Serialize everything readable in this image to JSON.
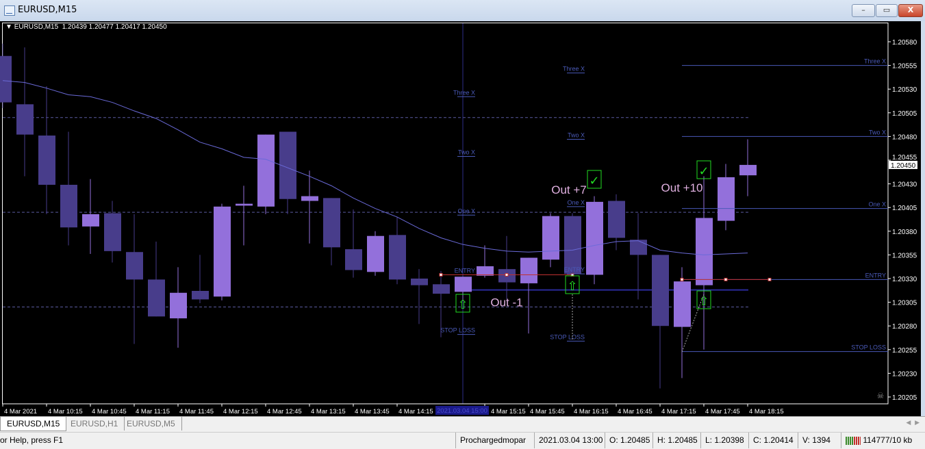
{
  "window": {
    "title": "EURUSD,M15",
    "buttons": {
      "minimize": "–",
      "maximize": "▭",
      "close": "X"
    }
  },
  "chart_header": {
    "symbol": "EURUSD,M15",
    "ohlc": "1.20439 1.20477 1.20417 1.20450"
  },
  "colors": {
    "background": "#000000",
    "bull": "#9370db",
    "bear": "#483d8b",
    "ma": "#6a6ad8",
    "levels": "#4a5ab8",
    "entry_line": "#c03030",
    "signal_box": "#22dd22",
    "out_text": "#e0b0e0"
  },
  "chart_data": {
    "type": "candlestick",
    "symbol": "EURUSD",
    "timeframe": "M15",
    "ylim": [
      1.20195,
      1.20598
    ],
    "current_price": "1.20450",
    "price_ticks": [
      "1.20580",
      "1.20555",
      "1.20530",
      "1.20505",
      "1.20480",
      "1.20455",
      "1.20430",
      "1.20405",
      "1.20380",
      "1.20355",
      "1.20330",
      "1.20305",
      "1.20280",
      "1.20255",
      "1.20230",
      "1.20205"
    ],
    "time_labels": [
      {
        "bar": 0,
        "text": "4 Mar 2021"
      },
      {
        "bar": 2,
        "text": "4 Mar 10:15"
      },
      {
        "bar": 4,
        "text": "4 Mar 10:45"
      },
      {
        "bar": 6,
        "text": "4 Mar 11:15"
      },
      {
        "bar": 8,
        "text": "4 Mar 11:45"
      },
      {
        "bar": 10,
        "text": "4 Mar 12:15"
      },
      {
        "bar": 12,
        "text": "4 Mar 12:45"
      },
      {
        "bar": 14,
        "text": "4 Mar 13:15"
      },
      {
        "bar": 16,
        "text": "4 Mar 13:45"
      },
      {
        "bar": 18,
        "text": "4 Mar 14:15"
      },
      {
        "bar": 22,
        "text": "4 Mar 15:15"
      },
      {
        "bar": 24,
        "text": "4 Mar 15:45"
      },
      {
        "bar": 26,
        "text": "4 Mar 16:15"
      },
      {
        "bar": 28,
        "text": "4 Mar 16:45"
      },
      {
        "bar": 30,
        "text": "4 Mar 17:15"
      },
      {
        "bar": 32,
        "text": "4 Mar 17:45"
      },
      {
        "bar": 34,
        "text": "4 Mar 18:15"
      }
    ],
    "crosshair": {
      "bar": 21,
      "text": "2021.03.04 15:00"
    },
    "candles": [
      {
        "t": "09:45",
        "o": 1.20565,
        "h": 1.20578,
        "l": 1.2051,
        "c": 1.20516
      },
      {
        "t": "10:00",
        "o": 1.20514,
        "h": 1.20574,
        "l": 1.20438,
        "c": 1.20482
      },
      {
        "t": "10:15",
        "o": 1.20481,
        "h": 1.20533,
        "l": 1.20398,
        "c": 1.20429
      },
      {
        "t": "10:30",
        "o": 1.20429,
        "h": 1.20485,
        "l": 1.20365,
        "c": 1.20384
      },
      {
        "t": "10:45",
        "o": 1.20385,
        "h": 1.20435,
        "l": 1.20356,
        "c": 1.20398
      },
      {
        "t": "11:00",
        "o": 1.20399,
        "h": 1.20412,
        "l": 1.20347,
        "c": 1.20359
      },
      {
        "t": "11:15",
        "o": 1.20358,
        "h": 1.20398,
        "l": 1.20261,
        "c": 1.20329
      },
      {
        "t": "11:30",
        "o": 1.20329,
        "h": 1.20369,
        "l": 1.2029,
        "c": 1.2029
      },
      {
        "t": "11:45",
        "o": 1.20288,
        "h": 1.20342,
        "l": 1.20257,
        "c": 1.20315
      },
      {
        "t": "12:00",
        "o": 1.20317,
        "h": 1.20355,
        "l": 1.20304,
        "c": 1.20308
      },
      {
        "t": "12:15",
        "o": 1.20311,
        "h": 1.20409,
        "l": 1.20307,
        "c": 1.20406
      },
      {
        "t": "12:30",
        "o": 1.20407,
        "h": 1.20428,
        "l": 1.20365,
        "c": 1.20409
      },
      {
        "t": "12:45",
        "o": 1.20406,
        "h": 1.20482,
        "l": 1.20398,
        "c": 1.20482
      },
      {
        "t": "13:00",
        "o": 1.20485,
        "h": 1.20485,
        "l": 1.20398,
        "c": 1.20414
      },
      {
        "t": "13:15",
        "o": 1.20412,
        "h": 1.20444,
        "l": 1.20367,
        "c": 1.20417
      },
      {
        "t": "13:30",
        "o": 1.20415,
        "h": 1.20415,
        "l": 1.20344,
        "c": 1.20363
      },
      {
        "t": "13:45",
        "o": 1.20361,
        "h": 1.20403,
        "l": 1.20331,
        "c": 1.20339
      },
      {
        "t": "14:00",
        "o": 1.20337,
        "h": 1.2038,
        "l": 1.20333,
        "c": 1.20375
      },
      {
        "t": "14:15",
        "o": 1.20376,
        "h": 1.20395,
        "l": 1.20324,
        "c": 1.20329
      },
      {
        "t": "14:30",
        "o": 1.2033,
        "h": 1.2034,
        "l": 1.20282,
        "c": 1.20323
      },
      {
        "t": "14:45",
        "o": 1.20324,
        "h": 1.20338,
        "l": 1.20268,
        "c": 1.20314
      },
      {
        "t": "15:00",
        "o": 1.20316,
        "h": 1.20332,
        "l": 1.20306,
        "c": 1.20332
      },
      {
        "t": "15:15",
        "o": 1.20333,
        "h": 1.20365,
        "l": 1.20331,
        "c": 1.20343
      },
      {
        "t": "15:30",
        "o": 1.2034,
        "h": 1.20375,
        "l": 1.20308,
        "c": 1.20326
      },
      {
        "t": "15:45",
        "o": 1.20325,
        "h": 1.20352,
        "l": 1.20272,
        "c": 1.20352
      },
      {
        "t": "16:00",
        "o": 1.2035,
        "h": 1.20399,
        "l": 1.20342,
        "c": 1.20396
      },
      {
        "t": "16:15",
        "o": 1.20396,
        "h": 1.20399,
        "l": 1.20335,
        "c": 1.20335
      },
      {
        "t": "16:30",
        "o": 1.20334,
        "h": 1.20417,
        "l": 1.20324,
        "c": 1.20411
      },
      {
        "t": "16:45",
        "o": 1.20412,
        "h": 1.20419,
        "l": 1.2036,
        "c": 1.20373
      },
      {
        "t": "17:00",
        "o": 1.20371,
        "h": 1.20399,
        "l": 1.20308,
        "c": 1.20355
      },
      {
        "t": "17:15",
        "o": 1.20355,
        "h": 1.20355,
        "l": 1.20214,
        "c": 1.2028
      },
      {
        "t": "17:30",
        "o": 1.20279,
        "h": 1.20342,
        "l": 1.20225,
        "c": 1.20327
      },
      {
        "t": "17:45",
        "o": 1.20323,
        "h": 1.20438,
        "l": 1.20255,
        "c": 1.20394
      },
      {
        "t": "18:00",
        "o": 1.20391,
        "h": 1.20451,
        "l": 1.20381,
        "c": 1.20437
      },
      {
        "t": "18:15",
        "o": 1.20439,
        "h": 1.20477,
        "l": 1.20417,
        "c": 1.2045
      }
    ],
    "moving_average": [
      1.20539,
      1.20537,
      1.20531,
      1.20524,
      1.20522,
      1.20516,
      1.20507,
      1.20499,
      1.20487,
      1.20474,
      1.20467,
      1.20458,
      1.20456,
      1.20447,
      1.20438,
      1.20428,
      1.20415,
      1.20404,
      1.20395,
      1.20383,
      1.20373,
      1.20366,
      1.20362,
      1.20359,
      1.20358,
      1.20359,
      1.2036,
      1.20365,
      1.20369,
      1.2037,
      1.2036,
      1.20357,
      1.20355,
      1.20356,
      1.20357
    ],
    "round_levels": [
      1.205,
      1.204,
      1.203
    ],
    "signal_level": 1.20318,
    "trades": [
      {
        "bar": 21,
        "levels": [
          {
            "label": "Three X",
            "price": 1.20522
          },
          {
            "label": "Two X",
            "price": 1.20459
          },
          {
            "label": "One X",
            "price": 1.20397
          },
          {
            "label": "ENTRY",
            "price": 1.20334
          },
          {
            "label": "STOP LOSS",
            "price": 1.20271
          }
        ],
        "result": "Out -1",
        "result_bar": 23,
        "result_price": 1.20305,
        "win": false
      },
      {
        "bar": 26,
        "levels": [
          {
            "label": "Three X",
            "price": 1.20547
          },
          {
            "label": "Two X",
            "price": 1.20477
          },
          {
            "label": "One X",
            "price": 1.20406
          },
          {
            "label": "ENTRY",
            "price": 1.20335
          },
          {
            "label": "STOP LOSS",
            "price": 1.20264
          }
        ],
        "result": "Out +7",
        "result_bar": 26,
        "result_price": 1.20418,
        "win": true
      },
      {
        "bar": 31,
        "levels": [
          {
            "label": "Three X",
            "price": 1.20555
          },
          {
            "label": "Two X",
            "price": 1.2048
          },
          {
            "label": "One X",
            "price": 1.20404
          },
          {
            "label": "ENTRY",
            "price": 1.20329
          },
          {
            "label": "STOP LOSS",
            "price": 1.20253
          }
        ],
        "result": "Out +10",
        "result_bar": 31,
        "result_price": 1.20426,
        "win": true
      }
    ]
  },
  "tabs": [
    {
      "label": "EURUSD,M15",
      "active": true
    },
    {
      "label": "EURUSD,H1"
    },
    {
      "label": "EURUSD,M5"
    }
  ],
  "status": {
    "help": "or Help, press F1",
    "profile": "Prochargedmopar",
    "datetime": "2021.03.04 13:00",
    "open": "O: 1.20485",
    "high": "H: 1.20485",
    "low": "L: 1.20398",
    "close": "C: 1.20414",
    "volume": "V: 1394",
    "traffic": "114777/10 kb"
  }
}
